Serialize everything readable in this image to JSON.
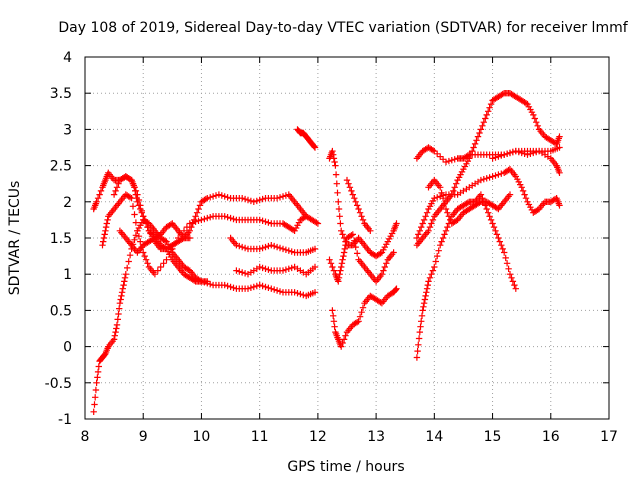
{
  "chart_data": {
    "type": "scatter",
    "title": "Day 108 of 2019, Sidereal Day-to-day VTEC variation (SDTVAR) for receiver lmmf",
    "xlabel": "GPS time / hours",
    "ylabel": "SDTVAR / TECUs",
    "xlim": [
      8,
      17
    ],
    "ylim": [
      -1,
      4
    ],
    "grid": true,
    "legend": "none",
    "marker": "plus",
    "color": "#ff0000",
    "xticks": [
      8,
      9,
      10,
      11,
      12,
      13,
      14,
      15,
      16,
      17
    ],
    "xtick_labels": [
      "8",
      "9",
      "10",
      "11",
      "12",
      "13",
      "14",
      "15",
      "16",
      "17"
    ],
    "yticks": [
      -1,
      -0.5,
      0,
      0.5,
      1,
      1.5,
      2,
      2.5,
      3,
      3.5,
      4
    ],
    "ytick_labels": [
      "-1",
      "-0.5",
      "0",
      "0.5",
      "1",
      "1.5",
      "2",
      "2.5",
      "3",
      "3.5",
      "4"
    ],
    "series": [
      {
        "name": "track-1",
        "x": [
          8.15,
          8.2,
          8.25,
          8.3,
          8.35,
          8.4,
          8.5,
          8.55,
          8.6,
          8.65,
          8.7,
          8.8,
          8.9,
          9.0,
          9.1,
          9.2,
          9.3,
          9.4,
          9.5,
          9.6,
          9.7,
          9.8,
          9.9,
          10.0,
          10.1
        ],
        "y": [
          -0.9,
          -0.5,
          -0.2,
          -0.15,
          -0.1,
          0.0,
          0.1,
          0.3,
          0.6,
          0.8,
          1.0,
          1.35,
          1.6,
          1.75,
          1.7,
          1.6,
          1.5,
          1.45,
          1.3,
          1.2,
          1.1,
          1.05,
          0.95,
          0.9,
          0.9
        ]
      },
      {
        "name": "track-2",
        "x": [
          8.15,
          8.2,
          8.3,
          8.35,
          8.4,
          8.5,
          8.6,
          8.7,
          8.8,
          8.85,
          8.9,
          9.0,
          9.1,
          9.2,
          9.3,
          9.4,
          9.5,
          9.6,
          9.7,
          9.8,
          9.9,
          10.0,
          10.2,
          10.4,
          10.6,
          10.8,
          11.0,
          11.2,
          11.4,
          11.6,
          11.8,
          11.95
        ],
        "y": [
          1.9,
          2.0,
          2.2,
          2.3,
          2.4,
          2.3,
          2.3,
          2.35,
          2.3,
          2.2,
          2.0,
          1.8,
          1.6,
          1.5,
          1.4,
          1.35,
          1.2,
          1.1,
          1.0,
          0.95,
          0.9,
          0.9,
          0.85,
          0.85,
          0.8,
          0.8,
          0.85,
          0.8,
          0.75,
          0.75,
          0.7,
          0.75
        ]
      },
      {
        "name": "track-3",
        "x": [
          8.3,
          8.35,
          8.4,
          8.5,
          8.6,
          8.7,
          8.8,
          8.9,
          9.0,
          9.1,
          9.2,
          9.4,
          9.6,
          9.8,
          10.0,
          10.2,
          10.4,
          10.6,
          10.8,
          11.0,
          11.2,
          11.4,
          11.5,
          11.6,
          11.7,
          11.8,
          11.9,
          12.0
        ],
        "y": [
          1.4,
          1.6,
          1.8,
          1.9,
          2.0,
          2.1,
          2.05,
          1.6,
          1.3,
          1.1,
          1.0,
          1.2,
          1.5,
          1.7,
          1.75,
          1.8,
          1.8,
          1.75,
          1.75,
          1.75,
          1.7,
          1.7,
          1.65,
          1.6,
          1.75,
          1.8,
          1.75,
          1.7
        ]
      },
      {
        "name": "track-4",
        "x": [
          8.6,
          8.7,
          8.8,
          8.9,
          9.0,
          9.1,
          9.2,
          9.3,
          9.4,
          9.5,
          9.6,
          9.7,
          9.8,
          9.9,
          10.0,
          10.1,
          10.3,
          10.5,
          10.7,
          10.9,
          11.1,
          11.3,
          11.5,
          11.6,
          11.7,
          11.8
        ],
        "y": [
          1.6,
          1.5,
          1.4,
          1.3,
          1.4,
          1.45,
          1.5,
          1.55,
          1.65,
          1.7,
          1.6,
          1.5,
          1.6,
          1.8,
          2.0,
          2.05,
          2.1,
          2.05,
          2.05,
          2.0,
          2.05,
          2.05,
          2.1,
          2.0,
          1.9,
          1.8
        ]
      },
      {
        "name": "track-5",
        "x": [
          8.5,
          8.6,
          8.7,
          8.8,
          8.9,
          9.0,
          9.1,
          9.2,
          9.3,
          9.4,
          9.5,
          9.6,
          9.7,
          9.8
        ],
        "y": [
          2.1,
          2.3,
          2.35,
          2.3,
          2.1,
          1.8,
          1.6,
          1.45,
          1.35,
          1.35,
          1.4,
          1.45,
          1.5,
          1.5
        ]
      },
      {
        "name": "track-6",
        "x": [
          10.5,
          10.6,
          10.8,
          11.0,
          11.2,
          11.4,
          11.6,
          11.8,
          11.95
        ],
        "y": [
          1.5,
          1.4,
          1.35,
          1.35,
          1.4,
          1.35,
          1.3,
          1.3,
          1.35
        ]
      },
      {
        "name": "track-7",
        "x": [
          10.6,
          10.8,
          11.0,
          11.2,
          11.4,
          11.6,
          11.8,
          11.95
        ],
        "y": [
          1.05,
          1.0,
          1.1,
          1.05,
          1.05,
          1.1,
          1.0,
          1.1
        ]
      },
      {
        "name": "track-8",
        "x": [
          11.65,
          11.7,
          11.75,
          11.8,
          11.85,
          11.9,
          11.95
        ],
        "y": [
          3.0,
          2.95,
          2.95,
          2.9,
          2.85,
          2.8,
          2.75
        ]
      },
      {
        "name": "track-9",
        "x": [
          12.2,
          12.25,
          12.3,
          12.35,
          12.4,
          12.5,
          12.6,
          12.7,
          12.8,
          12.9,
          13.0,
          13.1,
          13.2,
          13.3,
          13.35
        ],
        "y": [
          2.6,
          2.7,
          2.5,
          2.0,
          1.6,
          1.4,
          1.4,
          1.5,
          1.4,
          1.3,
          1.25,
          1.3,
          1.45,
          1.6,
          1.7
        ]
      },
      {
        "name": "track-10",
        "x": [
          12.2,
          12.3,
          12.35,
          12.4,
          12.45,
          12.5,
          12.6,
          12.7,
          12.8,
          12.9,
          13.0,
          13.1,
          13.2,
          13.3
        ],
        "y": [
          1.2,
          1.0,
          0.9,
          1.1,
          1.3,
          1.5,
          1.55,
          1.2,
          1.1,
          1.0,
          0.9,
          1.0,
          1.2,
          1.3
        ]
      },
      {
        "name": "track-11",
        "x": [
          12.25,
          12.3,
          12.35,
          12.4,
          12.5,
          12.6,
          12.7,
          12.8,
          12.9,
          13.0,
          13.1,
          13.2,
          13.3,
          13.35
        ],
        "y": [
          0.5,
          0.2,
          0.1,
          0.0,
          0.2,
          0.3,
          0.35,
          0.6,
          0.7,
          0.65,
          0.6,
          0.7,
          0.75,
          0.8
        ]
      },
      {
        "name": "track-12",
        "x": [
          12.5,
          12.6,
          12.7,
          12.8,
          12.9
        ],
        "y": [
          2.3,
          2.1,
          1.9,
          1.7,
          1.6
        ]
      },
      {
        "name": "track-13",
        "x": [
          13.7,
          13.75,
          13.8,
          13.85,
          13.9,
          14.0,
          14.1,
          14.2,
          14.3,
          14.4,
          14.5,
          14.6,
          14.7,
          14.8,
          14.9,
          15.0,
          15.1,
          15.2,
          15.3,
          15.4
        ],
        "y": [
          -0.15,
          0.2,
          0.5,
          0.7,
          0.9,
          1.1,
          1.4,
          1.6,
          1.8,
          1.9,
          1.95,
          2.0,
          2.0,
          2.1,
          1.9,
          1.7,
          1.5,
          1.3,
          1.0,
          0.8
        ]
      },
      {
        "name": "track-14",
        "x": [
          13.7,
          13.8,
          13.9,
          14.0,
          14.1,
          14.2,
          14.3,
          14.4,
          14.5,
          14.6,
          14.7,
          14.8,
          14.9,
          15.0,
          15.1,
          15.2,
          15.3,
          15.4,
          15.5,
          15.6,
          15.7,
          15.8,
          15.9,
          16.0,
          16.1,
          16.15
        ],
        "y": [
          1.4,
          1.5,
          1.6,
          1.8,
          1.9,
          2.0,
          2.1,
          2.3,
          2.45,
          2.6,
          2.8,
          3.0,
          3.2,
          3.4,
          3.45,
          3.5,
          3.5,
          3.45,
          3.4,
          3.35,
          3.2,
          3.0,
          2.9,
          2.85,
          2.8,
          2.9
        ]
      },
      {
        "name": "track-15",
        "x": [
          13.7,
          13.8,
          13.9,
          14.0,
          14.2,
          14.4,
          14.5,
          14.6,
          14.8,
          15.0,
          15.2,
          15.4,
          15.6,
          15.8,
          16.0,
          16.15
        ],
        "y": [
          2.6,
          2.7,
          2.75,
          2.7,
          2.55,
          2.6,
          2.6,
          2.65,
          2.65,
          2.65,
          2.65,
          2.7,
          2.65,
          2.7,
          2.7,
          2.75
        ]
      },
      {
        "name": "track-16",
        "x": [
          13.7,
          13.8,
          13.9,
          14.0,
          14.2,
          14.4,
          14.6,
          14.8,
          15.0,
          15.2,
          15.3,
          15.4,
          15.5,
          15.6,
          15.7,
          15.8,
          15.9,
          16.0,
          16.1,
          16.15
        ],
        "y": [
          1.5,
          1.7,
          1.9,
          2.05,
          2.1,
          2.1,
          2.2,
          2.3,
          2.35,
          2.4,
          2.45,
          2.35,
          2.2,
          2.0,
          1.85,
          1.9,
          2.0,
          2.0,
          2.05,
          1.95
        ]
      },
      {
        "name": "track-17",
        "x": [
          13.9,
          14.0,
          14.1,
          14.2,
          14.3,
          14.4,
          14.5,
          14.6,
          14.7,
          14.8,
          14.9,
          15.0,
          15.1,
          15.2,
          15.3
        ],
        "y": [
          2.2,
          2.3,
          2.2,
          1.9,
          1.7,
          1.75,
          1.85,
          1.9,
          1.95,
          2.0,
          2.0,
          1.95,
          1.9,
          2.0,
          2.1
        ]
      },
      {
        "name": "track-18",
        "x": [
          15.0,
          15.2,
          15.4,
          15.6,
          15.8,
          16.0,
          16.1,
          16.15
        ],
        "y": [
          2.6,
          2.65,
          2.7,
          2.7,
          2.7,
          2.6,
          2.5,
          2.4
        ]
      }
    ]
  }
}
